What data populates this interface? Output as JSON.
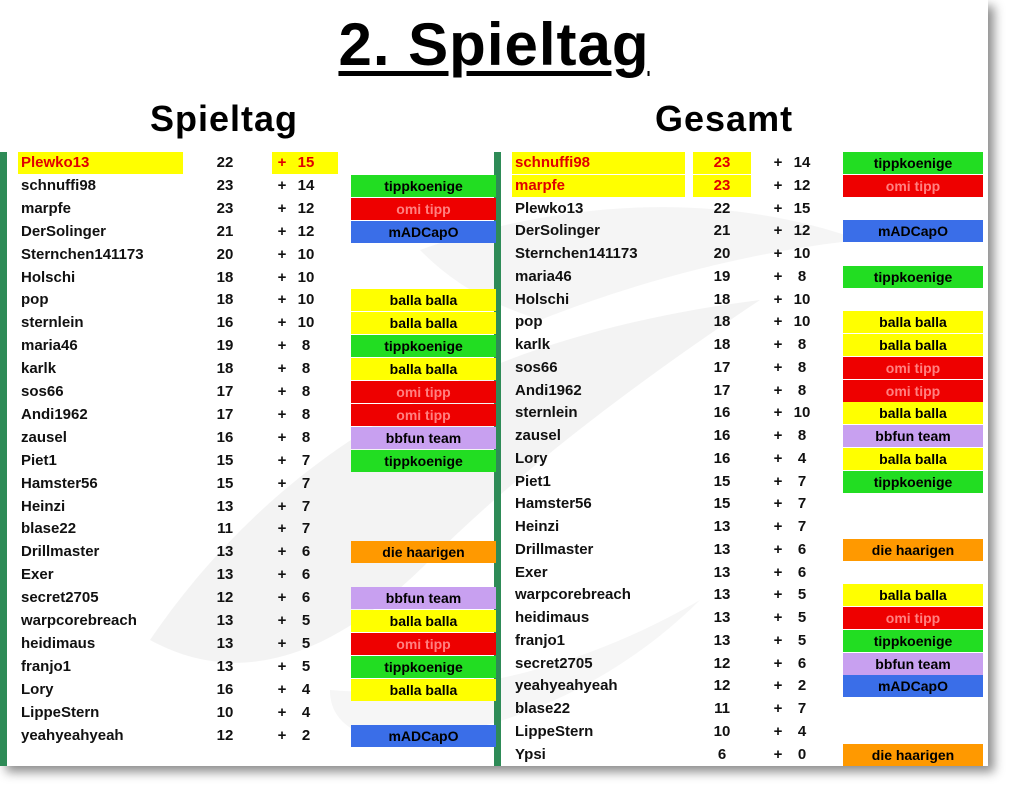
{
  "title": "2. Spieltag",
  "spieltag": {
    "heading": "Spieltag",
    "rows": [
      {
        "name": "Plewko13",
        "score": "22",
        "plus": "+",
        "pts": "15",
        "team": "",
        "highlight": true
      },
      {
        "name": "schnuffi98",
        "score": "23",
        "plus": "+",
        "pts": "14",
        "team": "tippkoenige"
      },
      {
        "name": "marpfe",
        "score": "23",
        "plus": "+",
        "pts": "12",
        "team": "omi tipp"
      },
      {
        "name": "DerSolinger",
        "score": "21",
        "plus": "+",
        "pts": "12",
        "team": "mADCapO"
      },
      {
        "name": "Sternchen141173",
        "score": "20",
        "plus": "+",
        "pts": "10",
        "team": ""
      },
      {
        "name": "Holschi",
        "score": "18",
        "plus": "+",
        "pts": "10",
        "team": ""
      },
      {
        "name": "pop",
        "score": "18",
        "plus": "+",
        "pts": "10",
        "team": "balla balla"
      },
      {
        "name": "sternlein",
        "score": "16",
        "plus": "+",
        "pts": "10",
        "team": "balla balla"
      },
      {
        "name": "maria46",
        "score": "19",
        "plus": "+",
        "pts": "8",
        "team": "tippkoenige"
      },
      {
        "name": "karlk",
        "score": "18",
        "plus": "+",
        "pts": "8",
        "team": "balla balla"
      },
      {
        "name": "sos66",
        "score": "17",
        "plus": "+",
        "pts": "8",
        "team": "omi tipp"
      },
      {
        "name": "Andi1962",
        "score": "17",
        "plus": "+",
        "pts": "8",
        "team": "omi tipp"
      },
      {
        "name": "zausel",
        "score": "16",
        "plus": "+",
        "pts": "8",
        "team": "bbfun team"
      },
      {
        "name": "Piet1",
        "score": "15",
        "plus": "+",
        "pts": "7",
        "team": "tippkoenige"
      },
      {
        "name": "Hamster56",
        "score": "15",
        "plus": "+",
        "pts": "7",
        "team": ""
      },
      {
        "name": "Heinzi",
        "score": "13",
        "plus": "+",
        "pts": "7",
        "team": ""
      },
      {
        "name": "blase22",
        "score": "11",
        "plus": "+",
        "pts": "7",
        "team": ""
      },
      {
        "name": "Drillmaster",
        "score": "13",
        "plus": "+",
        "pts": "6",
        "team": "die haarigen"
      },
      {
        "name": "Exer",
        "score": "13",
        "plus": "+",
        "pts": "6",
        "team": ""
      },
      {
        "name": "secret2705",
        "score": "12",
        "plus": "+",
        "pts": "6",
        "team": "bbfun team"
      },
      {
        "name": "warpcorebreach",
        "score": "13",
        "plus": "+",
        "pts": "5",
        "team": "balla balla"
      },
      {
        "name": "heidimaus",
        "score": "13",
        "plus": "+",
        "pts": "5",
        "team": "omi tipp"
      },
      {
        "name": "franjo1",
        "score": "13",
        "plus": "+",
        "pts": "5",
        "team": "tippkoenige"
      },
      {
        "name": "Lory",
        "score": "16",
        "plus": "+",
        "pts": "4",
        "team": "balla balla"
      },
      {
        "name": "LippeStern",
        "score": "10",
        "plus": "+",
        "pts": "4",
        "team": ""
      },
      {
        "name": "yeahyeahyeah",
        "score": "12",
        "plus": "+",
        "pts": "2",
        "team": "mADCapO"
      }
    ]
  },
  "gesamt": {
    "heading": "Gesamt",
    "rows": [
      {
        "name": "schnuffi98",
        "score": "23",
        "plus": "+",
        "pts": "14",
        "team": "tippkoenige",
        "highlight": true
      },
      {
        "name": "marpfe",
        "score": "23",
        "plus": "+",
        "pts": "12",
        "team": "omi tipp",
        "highlight": true
      },
      {
        "name": "Plewko13",
        "score": "22",
        "plus": "+",
        "pts": "15",
        "team": ""
      },
      {
        "name": "DerSolinger",
        "score": "21",
        "plus": "+",
        "pts": "12",
        "team": "mADCapO"
      },
      {
        "name": "Sternchen141173",
        "score": "20",
        "plus": "+",
        "pts": "10",
        "team": ""
      },
      {
        "name": "maria46",
        "score": "19",
        "plus": "+",
        "pts": "8",
        "team": "tippkoenige"
      },
      {
        "name": "Holschi",
        "score": "18",
        "plus": "+",
        "pts": "10",
        "team": ""
      },
      {
        "name": "pop",
        "score": "18",
        "plus": "+",
        "pts": "10",
        "team": "balla balla"
      },
      {
        "name": "karlk",
        "score": "18",
        "plus": "+",
        "pts": "8",
        "team": "balla balla"
      },
      {
        "name": "sos66",
        "score": "17",
        "plus": "+",
        "pts": "8",
        "team": "omi tipp"
      },
      {
        "name": "Andi1962",
        "score": "17",
        "plus": "+",
        "pts": "8",
        "team": "omi tipp"
      },
      {
        "name": "sternlein",
        "score": "16",
        "plus": "+",
        "pts": "10",
        "team": "balla balla"
      },
      {
        "name": "zausel",
        "score": "16",
        "plus": "+",
        "pts": "8",
        "team": "bbfun team"
      },
      {
        "name": "Lory",
        "score": "16",
        "plus": "+",
        "pts": "4",
        "team": "balla balla"
      },
      {
        "name": "Piet1",
        "score": "15",
        "plus": "+",
        "pts": "7",
        "team": "tippkoenige"
      },
      {
        "name": "Hamster56",
        "score": "15",
        "plus": "+",
        "pts": "7",
        "team": ""
      },
      {
        "name": "Heinzi",
        "score": "13",
        "plus": "+",
        "pts": "7",
        "team": ""
      },
      {
        "name": "Drillmaster",
        "score": "13",
        "plus": "+",
        "pts": "6",
        "team": "die haarigen"
      },
      {
        "name": "Exer",
        "score": "13",
        "plus": "+",
        "pts": "6",
        "team": ""
      },
      {
        "name": "warpcorebreach",
        "score": "13",
        "plus": "+",
        "pts": "5",
        "team": "balla balla"
      },
      {
        "name": "heidimaus",
        "score": "13",
        "plus": "+",
        "pts": "5",
        "team": "omi tipp"
      },
      {
        "name": "franjo1",
        "score": "13",
        "plus": "+",
        "pts": "5",
        "team": "tippkoenige"
      },
      {
        "name": "secret2705",
        "score": "12",
        "plus": "+",
        "pts": "6",
        "team": "bbfun team"
      },
      {
        "name": "yeahyeahyeah",
        "score": "12",
        "plus": "+",
        "pts": "2",
        "team": "mADCapO"
      },
      {
        "name": "blase22",
        "score": "11",
        "plus": "+",
        "pts": "7",
        "team": ""
      },
      {
        "name": "LippeStern",
        "score": "10",
        "plus": "+",
        "pts": "4",
        "team": ""
      },
      {
        "name": "Ypsi",
        "score": "6",
        "plus": "+",
        "pts": "0",
        "team": "die haarigen"
      }
    ]
  },
  "team_colors": {
    "tippkoenige": "#22dd22",
    "omi tipp": "#ee0000",
    "mADCapO": "#3a6ee8",
    "balla balla": "#ffff00",
    "bbfun team": "#c8a0f0",
    "die haarigen": "#ff9900"
  },
  "team_text_colors": {
    "tippkoenige": "#000000",
    "omi tipp": "#ff8080",
    "mADCapO": "#000000",
    "balla balla": "#000000",
    "bbfun team": "#000000",
    "die haarigen": "#000000"
  },
  "highlight_color": "#ffff00",
  "highlight_text_color": "#e00000"
}
